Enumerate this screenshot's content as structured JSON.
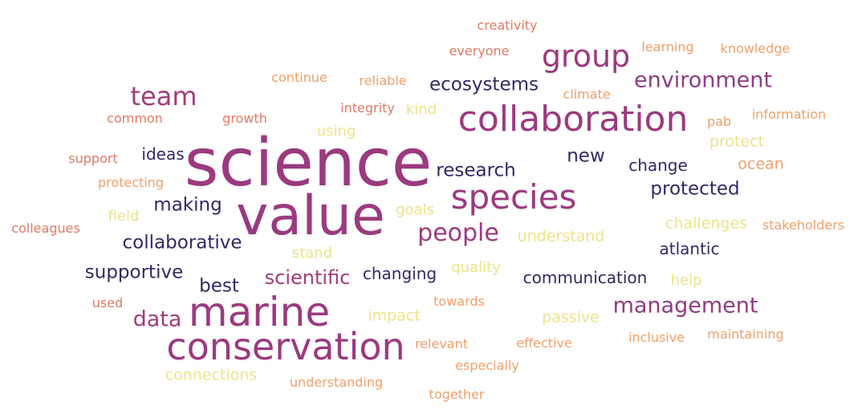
{
  "words": [
    {
      "text": "science",
      "color": "#9b3a7f"
    },
    {
      "text": "value",
      "color": "#9b3a7f"
    },
    {
      "text": "marine",
      "color": "#9b3a7f"
    },
    {
      "text": "conservation",
      "color": "#9b3a7f"
    },
    {
      "text": "collaboration",
      "color": "#9b3a7f"
    },
    {
      "text": "species",
      "color": "#9b3a7f"
    },
    {
      "text": "group",
      "color": "#9b3a7f"
    },
    {
      "text": "team",
      "color": "#a23c7a"
    },
    {
      "text": "people",
      "color": "#9b3a7f"
    },
    {
      "text": "environment",
      "color": "#8e3d83"
    },
    {
      "text": "management",
      "color": "#8e3d83"
    },
    {
      "text": "data",
      "color": "#a23c7a"
    },
    {
      "text": "scientific",
      "color": "#a23c7a"
    },
    {
      "text": "ecosystems",
      "color": "#2f2a66"
    },
    {
      "text": "research",
      "color": "#2f2a66"
    },
    {
      "text": "protected",
      "color": "#2f2a66"
    },
    {
      "text": "collaborative",
      "color": "#2f2a66"
    },
    {
      "text": "supportive",
      "color": "#2f2a66"
    },
    {
      "text": "making",
      "color": "#2f2a66"
    },
    {
      "text": "best",
      "color": "#2f2a66"
    },
    {
      "text": "new",
      "color": "#2f2a66"
    },
    {
      "text": "change",
      "color": "#2f2a66"
    },
    {
      "text": "atlantic",
      "color": "#2f2a66"
    },
    {
      "text": "communication",
      "color": "#2f2a66"
    },
    {
      "text": "changing",
      "color": "#2f2a66"
    },
    {
      "text": "ideas",
      "color": "#2f2a66"
    },
    {
      "text": "creativity",
      "color": "#e07a68"
    },
    {
      "text": "everyone",
      "color": "#e07a68"
    },
    {
      "text": "learning",
      "color": "#f0a06a"
    },
    {
      "text": "knowledge",
      "color": "#f0a06a"
    },
    {
      "text": "continue",
      "color": "#f0a06a"
    },
    {
      "text": "reliable",
      "color": "#f0a06a"
    },
    {
      "text": "climate",
      "color": "#f0a06a"
    },
    {
      "text": "integrity",
      "color": "#e07a68"
    },
    {
      "text": "kind",
      "color": "#ece38a"
    },
    {
      "text": "common",
      "color": "#e07a68"
    },
    {
      "text": "growth",
      "color": "#e07a68"
    },
    {
      "text": "pab",
      "color": "#f0a06a"
    },
    {
      "text": "information",
      "color": "#f0a06a"
    },
    {
      "text": "using",
      "color": "#ece38a"
    },
    {
      "text": "protect",
      "color": "#ece38a"
    },
    {
      "text": "support",
      "color": "#e07a68"
    },
    {
      "text": "protecting",
      "color": "#f0a06a"
    },
    {
      "text": "ocean",
      "color": "#f0a06a"
    },
    {
      "text": "field",
      "color": "#ece38a"
    },
    {
      "text": "goals",
      "color": "#ece38a"
    },
    {
      "text": "challenges",
      "color": "#ece38a"
    },
    {
      "text": "stakeholders",
      "color": "#f0a06a"
    },
    {
      "text": "colleagues",
      "color": "#e07a68"
    },
    {
      "text": "understand",
      "color": "#ece38a"
    },
    {
      "text": "stand",
      "color": "#ece38a"
    },
    {
      "text": "quality",
      "color": "#ece38a"
    },
    {
      "text": "help",
      "color": "#ece38a"
    },
    {
      "text": "used",
      "color": "#e07a68"
    },
    {
      "text": "towards",
      "color": "#f0a06a"
    },
    {
      "text": "impact",
      "color": "#ece38a"
    },
    {
      "text": "passive",
      "color": "#ece38a"
    },
    {
      "text": "relevant",
      "color": "#f0a06a"
    },
    {
      "text": "effective",
      "color": "#f0a06a"
    },
    {
      "text": "inclusive",
      "color": "#f0a06a"
    },
    {
      "text": "maintaining",
      "color": "#f0a06a"
    },
    {
      "text": "connections",
      "color": "#ece38a"
    },
    {
      "text": "especially",
      "color": "#f0a06a"
    },
    {
      "text": "understanding",
      "color": "#f0a06a"
    },
    {
      "text": "together",
      "color": "#f0a06a"
    }
  ]
}
